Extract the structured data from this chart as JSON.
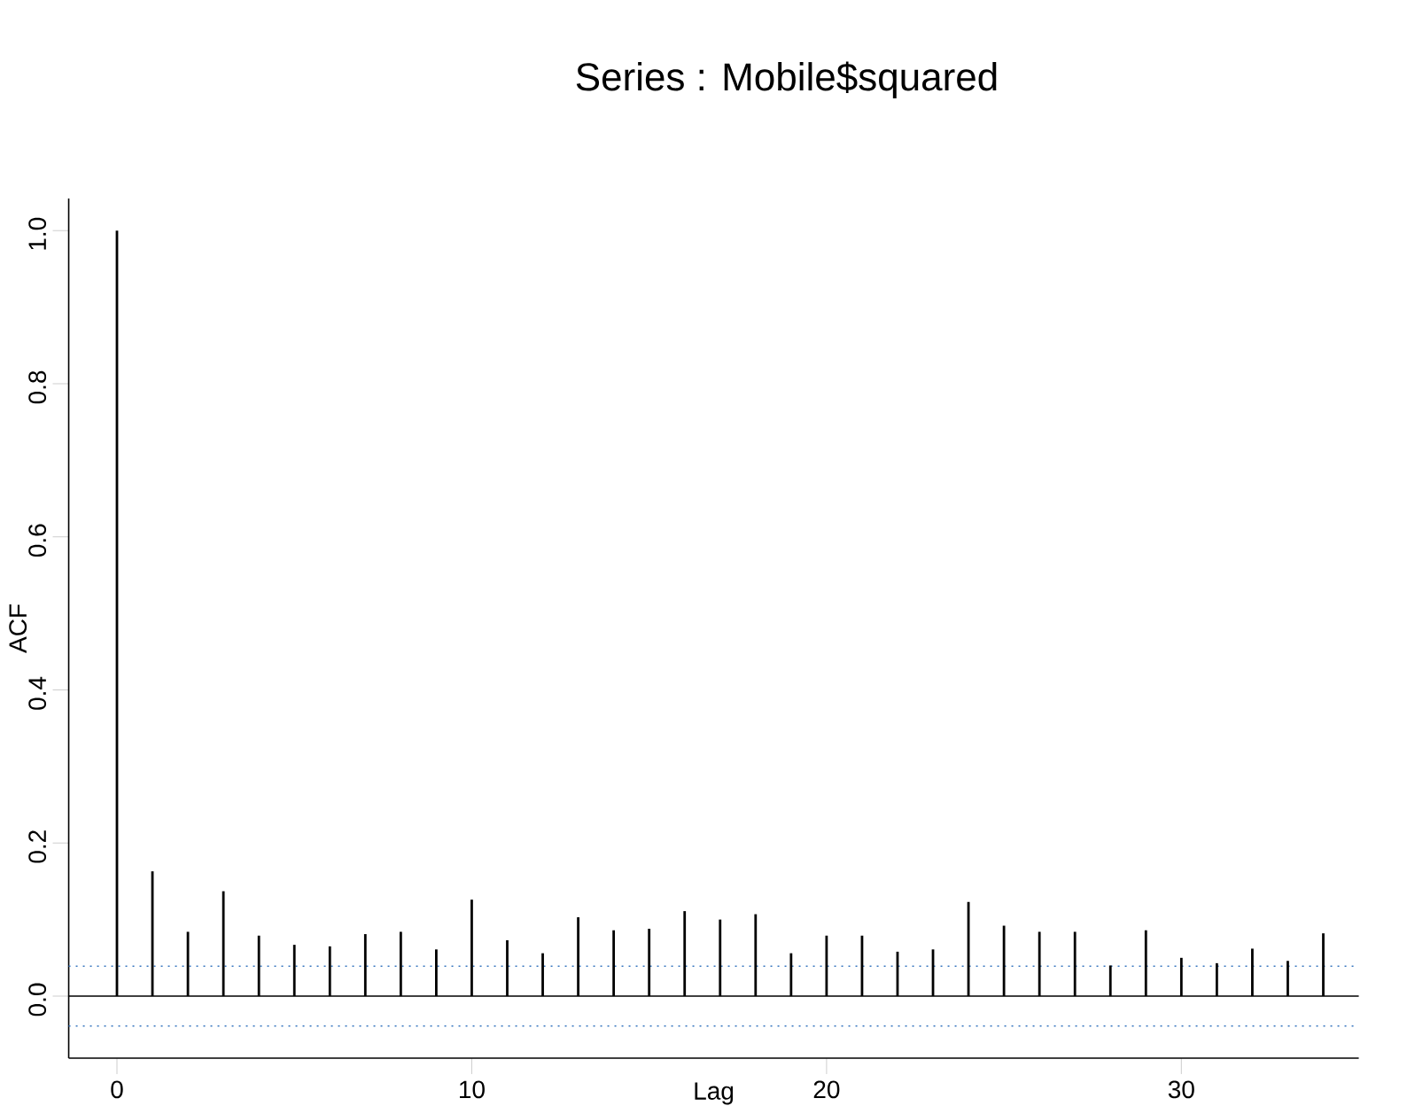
{
  "chart_data": {
    "type": "bar",
    "title": "Series : Mobile$squared",
    "xlabel": "Lag",
    "ylabel": "ACF",
    "x": [
      0,
      1,
      2,
      3,
      4,
      5,
      6,
      7,
      8,
      9,
      10,
      11,
      12,
      13,
      14,
      15,
      16,
      17,
      18,
      19,
      20,
      21,
      22,
      23,
      24,
      25,
      26,
      27,
      28,
      29,
      30,
      31,
      32,
      33,
      34
    ],
    "values": [
      1.0,
      0.163,
      0.084,
      0.137,
      0.079,
      0.067,
      0.065,
      0.081,
      0.084,
      0.061,
      0.126,
      0.073,
      0.056,
      0.103,
      0.086,
      0.088,
      0.111,
      0.1,
      0.107,
      0.056,
      0.079,
      0.079,
      0.058,
      0.061,
      0.123,
      0.092,
      0.084,
      0.084,
      0.04,
      0.086,
      0.05,
      0.043,
      0.062,
      0.046,
      0.082
    ],
    "color": "#000000",
    "xlim": [
      -1.36,
      35
    ],
    "ylim": [
      -0.081,
      1.042
    ],
    "xticks": [
      0,
      10,
      20,
      30
    ],
    "yticks": [
      {
        "value": 0,
        "label": "0.0"
      },
      {
        "value": 0.2,
        "label": "0.2"
      },
      {
        "value": 0.4,
        "label": "0.4"
      },
      {
        "value": 0.6,
        "label": "0.6"
      },
      {
        "value": 0.8,
        "label": "0.8"
      },
      {
        "value": 1.0,
        "label": "1.0"
      }
    ],
    "ref_lines": [
      {
        "axis": "y",
        "value": 0,
        "color": "#000000",
        "line_style": "solid"
      },
      {
        "axis": "y",
        "value": 0.039,
        "color": "#3a78c0",
        "line_style": "dotted"
      },
      {
        "axis": "y",
        "value": -0.039,
        "color": "#3a78c0",
        "line_style": "dotted"
      }
    ]
  }
}
